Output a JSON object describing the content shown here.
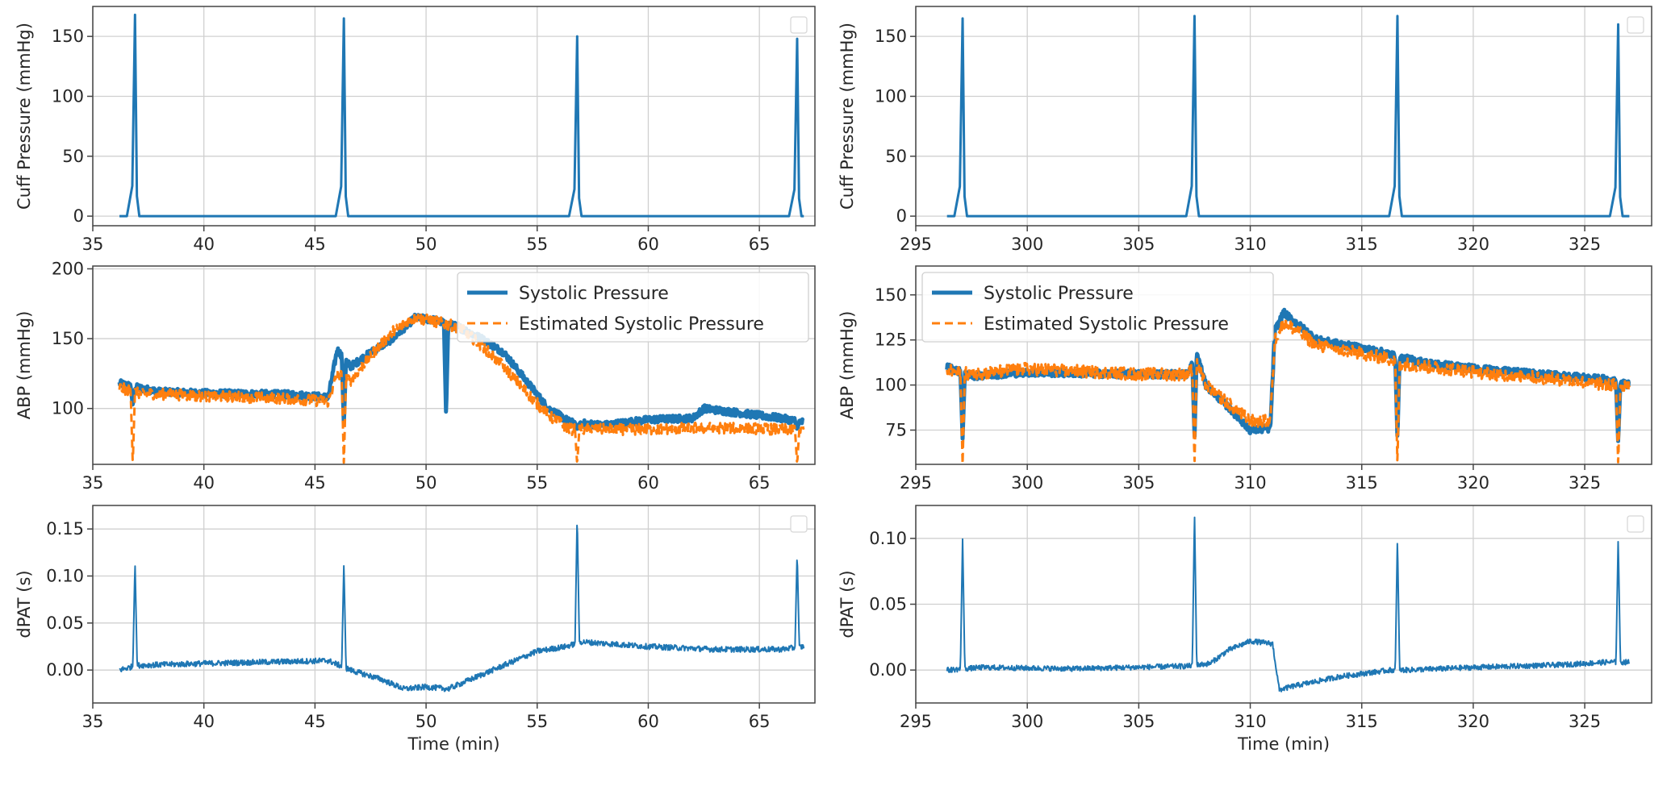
{
  "colors": {
    "blue": "#1f77b4",
    "orange": "#ff7f0e",
    "grid": "#d0d0d0",
    "frame": "#444444"
  },
  "chart_data": [
    {
      "id": "left-cuff",
      "type": "line",
      "xlabel": "",
      "ylabel": "Cuff Pressure (mmHg)",
      "xlim": [
        35,
        67.5
      ],
      "ylim": [
        -8,
        175
      ],
      "xticks": [
        35,
        40,
        45,
        50,
        55,
        60,
        65
      ],
      "xtick_labels": [
        "35",
        "40",
        "45",
        "50",
        "55",
        "60",
        "65"
      ],
      "yticks": [
        0,
        50,
        100,
        150
      ],
      "ytick_labels": [
        "0",
        "50",
        "100",
        "150"
      ],
      "grid": true,
      "legend_placement": "top-right",
      "legend_entries": [],
      "series": [
        {
          "color": "blue",
          "width": 3,
          "dash": "",
          "kind": "spikes",
          "start": 36.2,
          "end": 67.0,
          "base": 0,
          "noise": 0,
          "trend": [
            [
              36.2,
              0
            ],
            [
              67.0,
              0
            ]
          ],
          "spikes": [
            [
              36.9,
              168
            ],
            [
              46.3,
              165
            ],
            [
              56.8,
              150
            ],
            [
              66.7,
              148
            ]
          ]
        }
      ]
    },
    {
      "id": "left-abp",
      "type": "line",
      "xlabel": "",
      "ylabel": "ABP (mmHg)",
      "xlim": [
        35,
        67.5
      ],
      "ylim": [
        60,
        202
      ],
      "xticks": [
        35,
        40,
        45,
        50,
        55,
        60,
        65
      ],
      "xtick_labels": [
        "35",
        "40",
        "45",
        "50",
        "55",
        "60",
        "65"
      ],
      "yticks": [
        100,
        150,
        200
      ],
      "ytick_labels": [
        "100",
        "150",
        "200"
      ],
      "grid": true,
      "legend_placement": "top-right",
      "legend_entries": [
        {
          "label": "Systolic Pressure",
          "color": "blue",
          "dash": ""
        },
        {
          "label": "Estimated Systolic Pressure",
          "color": "orange",
          "dash": "10,6"
        }
      ],
      "series": [
        {
          "name": "Systolic Pressure",
          "color": "blue",
          "width": 5,
          "dash": "",
          "kind": "trace",
          "start": 36.2,
          "end": 67.0,
          "noise": 2.5,
          "trend": [
            [
              36.2,
              118
            ],
            [
              37.0,
              115
            ],
            [
              38,
              112
            ],
            [
              40,
              111
            ],
            [
              44,
              110
            ],
            [
              45.6,
              108
            ],
            [
              46.0,
              142
            ],
            [
              46.6,
              130
            ],
            [
              47.5,
              140
            ],
            [
              48.5,
              150
            ],
            [
              49.5,
              165
            ],
            [
              50.5,
              163
            ],
            [
              51.5,
              158
            ],
            [
              52.5,
              150
            ],
            [
              53.5,
              140
            ],
            [
              54.5,
              120
            ],
            [
              55.5,
              100
            ],
            [
              56.5,
              90
            ],
            [
              58,
              88
            ],
            [
              60,
              92
            ],
            [
              62,
              93
            ],
            [
              62.5,
              100
            ],
            [
              64,
              97
            ],
            [
              66,
              93
            ],
            [
              67.0,
              90
            ]
          ],
          "spikes": [
            [
              36.8,
              102
            ],
            [
              46.3,
              88
            ],
            [
              50.9,
              95
            ],
            [
              56.8,
              85
            ],
            [
              66.7,
              85
            ]
          ]
        },
        {
          "name": "Estimated Systolic Pressure",
          "color": "orange",
          "width": 3,
          "dash": "10,6",
          "kind": "trace",
          "start": 36.2,
          "end": 67.0,
          "noise": 4,
          "trend": [
            [
              36.2,
              115
            ],
            [
              37,
              111
            ],
            [
              40,
              109
            ],
            [
              44,
              107
            ],
            [
              45.6,
              105
            ],
            [
              46.0,
              125
            ],
            [
              46.6,
              120
            ],
            [
              47.5,
              138
            ],
            [
              48.5,
              155
            ],
            [
              49.5,
              165
            ],
            [
              50.5,
              162
            ],
            [
              51.5,
              158
            ],
            [
              52.5,
              145
            ],
            [
              53.5,
              130
            ],
            [
              54.5,
              112
            ],
            [
              55.5,
              95
            ],
            [
              56.5,
              85
            ],
            [
              58,
              85
            ],
            [
              60,
              85
            ],
            [
              62,
              86
            ],
            [
              64,
              86
            ],
            [
              66,
              85
            ],
            [
              67,
              85
            ]
          ],
          "spikes": [
            [
              36.8,
              60
            ],
            [
              46.3,
              60
            ],
            [
              56.8,
              60
            ],
            [
              66.7,
              60
            ]
          ]
        }
      ]
    },
    {
      "id": "left-dpat",
      "type": "line",
      "xlabel": "Time (min)",
      "ylabel": "dPAT (s)",
      "xlim": [
        35,
        67.5
      ],
      "ylim": [
        -0.035,
        0.175
      ],
      "xticks": [
        35,
        40,
        45,
        50,
        55,
        60,
        65
      ],
      "xtick_labels": [
        "35",
        "40",
        "45",
        "50",
        "55",
        "60",
        "65"
      ],
      "yticks": [
        0.0,
        0.05,
        0.1,
        0.15
      ],
      "ytick_labels": [
        "0.00",
        "0.05",
        "0.10",
        "0.15"
      ],
      "grid": true,
      "legend_placement": "top-right",
      "legend_entries": [],
      "series": [
        {
          "color": "blue",
          "width": 2,
          "dash": "",
          "kind": "trace",
          "start": 36.2,
          "end": 67.0,
          "noise": 0.003,
          "trend": [
            [
              36.2,
              0.0
            ],
            [
              37,
              0.005
            ],
            [
              40,
              0.007
            ],
            [
              45.6,
              0.01
            ],
            [
              46.6,
              0.0
            ],
            [
              48,
              -0.01
            ],
            [
              49,
              -0.02
            ],
            [
              50,
              -0.018
            ],
            [
              51,
              -0.02
            ],
            [
              52,
              -0.01
            ],
            [
              53,
              0.0
            ],
            [
              54,
              0.01
            ],
            [
              55,
              0.02
            ],
            [
              56.3,
              0.025
            ],
            [
              57,
              0.03
            ],
            [
              60,
              0.025
            ],
            [
              63,
              0.022
            ],
            [
              66,
              0.022
            ],
            [
              67,
              0.025
            ]
          ],
          "spikes": [
            [
              36.9,
              0.115
            ],
            [
              46.3,
              0.113
            ],
            [
              56.8,
              0.165
            ],
            [
              66.7,
              0.125
            ]
          ]
        }
      ]
    },
    {
      "id": "right-cuff",
      "type": "line",
      "xlabel": "",
      "ylabel": "Cuff Pressure (mmHg)",
      "xlim": [
        295,
        328
      ],
      "ylim": [
        -8,
        175
      ],
      "xticks": [
        295,
        300,
        305,
        310,
        315,
        320,
        325
      ],
      "xtick_labels": [
        "295",
        "300",
        "305",
        "310",
        "315",
        "320",
        "325"
      ],
      "yticks": [
        0,
        50,
        100,
        150
      ],
      "ytick_labels": [
        "0",
        "50",
        "100",
        "150"
      ],
      "grid": true,
      "legend_placement": "top-right",
      "legend_entries": [],
      "series": [
        {
          "color": "blue",
          "width": 3,
          "dash": "",
          "kind": "spikes",
          "start": 296.4,
          "end": 327.0,
          "base": 0,
          "noise": 0,
          "trend": [
            [
              296.4,
              0
            ],
            [
              327.0,
              0
            ]
          ],
          "spikes": [
            [
              297.1,
              165
            ],
            [
              307.5,
              167
            ],
            [
              316.6,
              167
            ],
            [
              326.5,
              160
            ]
          ]
        }
      ]
    },
    {
      "id": "right-abp",
      "type": "line",
      "xlabel": "",
      "ylabel": "ABP (mmHg)",
      "xlim": [
        295,
        328
      ],
      "ylim": [
        56,
        166
      ],
      "xticks": [
        295,
        300,
        305,
        310,
        315,
        320,
        325
      ],
      "xtick_labels": [
        "295",
        "300",
        "305",
        "310",
        "315",
        "320",
        "325"
      ],
      "yticks": [
        75,
        100,
        125,
        150
      ],
      "ytick_labels": [
        "75",
        "100",
        "125",
        "150"
      ],
      "grid": true,
      "legend_placement": "top-left",
      "legend_entries": [
        {
          "label": "Systolic Pressure",
          "color": "blue",
          "dash": ""
        },
        {
          "label": "Estimated Systolic Pressure",
          "color": "orange",
          "dash": "10,6"
        }
      ],
      "series": [
        {
          "name": "Systolic Pressure",
          "color": "blue",
          "width": 5,
          "dash": "",
          "kind": "trace",
          "start": 296.4,
          "end": 327.0,
          "noise": 2,
          "trend": [
            [
              296.4,
              110
            ],
            [
              297.5,
              105
            ],
            [
              300,
              107
            ],
            [
              305,
              106
            ],
            [
              307.2,
              106
            ],
            [
              307.6,
              118
            ],
            [
              308,
              100
            ],
            [
              309,
              88
            ],
            [
              310,
              75
            ],
            [
              310.9,
              76
            ],
            [
              311.1,
              130
            ],
            [
              311.5,
              140
            ],
            [
              313,
              125
            ],
            [
              316,
              118
            ],
            [
              316.8,
              115
            ],
            [
              318,
              112
            ],
            [
              321,
              108
            ],
            [
              324,
              105
            ],
            [
              326,
              103
            ],
            [
              327,
              100
            ]
          ],
          "spikes": [
            [
              297.1,
              70
            ],
            [
              307.5,
              70
            ],
            [
              316.6,
              70
            ],
            [
              326.5,
              68
            ]
          ]
        },
        {
          "name": "Estimated Systolic Pressure",
          "color": "orange",
          "width": 3,
          "dash": "10,6",
          "kind": "trace",
          "start": 296.4,
          "end": 327.0,
          "noise": 3.5,
          "trend": [
            [
              296.4,
              108
            ],
            [
              297.5,
              106
            ],
            [
              300,
              109
            ],
            [
              305,
              106
            ],
            [
              307.2,
              106
            ],
            [
              307.6,
              112
            ],
            [
              308,
              100
            ],
            [
              309,
              90
            ],
            [
              310,
              80
            ],
            [
              310.9,
              80
            ],
            [
              311.1,
              125
            ],
            [
              311.5,
              135
            ],
            [
              313,
              122
            ],
            [
              316,
              115
            ],
            [
              316.8,
              112
            ],
            [
              318,
              110
            ],
            [
              321,
              106
            ],
            [
              324,
              103
            ],
            [
              326,
              100
            ],
            [
              327,
              100
            ]
          ],
          "spikes": [
            [
              297.1,
              56
            ],
            [
              307.5,
              56
            ],
            [
              316.6,
              56
            ],
            [
              326.5,
              56
            ]
          ]
        }
      ]
    },
    {
      "id": "right-dpat",
      "type": "line",
      "xlabel": "Time (min)",
      "ylabel": "dPAT (s)",
      "xlim": [
        295,
        328
      ],
      "ylim": [
        -0.025,
        0.125
      ],
      "xticks": [
        295,
        300,
        305,
        310,
        315,
        320,
        325
      ],
      "xtick_labels": [
        "295",
        "300",
        "305",
        "310",
        "315",
        "320",
        "325"
      ],
      "yticks": [
        0.0,
        0.05,
        0.1
      ],
      "ytick_labels": [
        "0.00",
        "0.05",
        "0.10"
      ],
      "grid": true,
      "legend_placement": "top-right",
      "legend_entries": [],
      "series": [
        {
          "color": "blue",
          "width": 2,
          "dash": "",
          "kind": "trace",
          "start": 296.4,
          "end": 327.0,
          "noise": 0.002,
          "trend": [
            [
              296.4,
              0.0
            ],
            [
              298,
              0.002
            ],
            [
              302,
              0.001
            ],
            [
              307.2,
              0.003
            ],
            [
              308.2,
              0.005
            ],
            [
              309,
              0.015
            ],
            [
              310,
              0.022
            ],
            [
              311,
              0.02
            ],
            [
              311.3,
              -0.015
            ],
            [
              312,
              -0.012
            ],
            [
              314,
              -0.005
            ],
            [
              316.3,
              0.0
            ],
            [
              317,
              0.0
            ],
            [
              320,
              0.002
            ],
            [
              324,
              0.004
            ],
            [
              326,
              0.006
            ],
            [
              327,
              0.006
            ]
          ],
          "spikes": [
            [
              297.1,
              0.1
            ],
            [
              307.5,
              0.12
            ],
            [
              316.6,
              0.1
            ],
            [
              326.5,
              0.1
            ]
          ]
        }
      ]
    }
  ]
}
